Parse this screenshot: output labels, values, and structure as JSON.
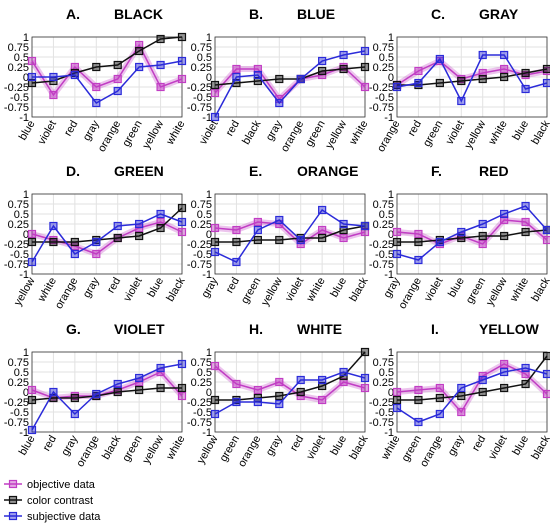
{
  "chart_data": [
    {
      "type": "line",
      "label": "A.",
      "title": "BLACK",
      "categories": [
        "blue",
        "violet",
        "red",
        "gray",
        "orange",
        "green",
        "yellow",
        "white"
      ],
      "ylim": [
        -1,
        1
      ],
      "yticks": [
        -1,
        -0.75,
        -0.5,
        -0.25,
        0,
        0.25,
        0.5,
        0.75,
        1
      ],
      "grid": true,
      "series": [
        {
          "values": [
            0.4,
            -0.45,
            0.25,
            -0.25,
            -0.05,
            0.8,
            -0.25,
            -0.05
          ]
        },
        {
          "values": [
            -0.15,
            -0.1,
            0.1,
            0.25,
            0.3,
            0.65,
            0.95,
            1.0
          ]
        },
        {
          "values": [
            0,
            0,
            0.05,
            -0.65,
            -0.35,
            0.25,
            0.3,
            0.4
          ]
        }
      ]
    },
    {
      "type": "line",
      "label": "B.",
      "title": "BLUE",
      "categories": [
        "violet",
        "red",
        "black",
        "gray",
        "orange",
        "green",
        "yellow",
        "white"
      ],
      "ylim": [
        -1,
        1
      ],
      "yticks": [
        -1,
        -0.75,
        -0.5,
        -0.25,
        0,
        0.25,
        0.5,
        0.75,
        1
      ],
      "grid": true,
      "series": [
        {
          "values": [
            -0.4,
            0.2,
            0.2,
            -0.55,
            -0.05,
            0.05,
            0.25,
            -0.25
          ]
        },
        {
          "values": [
            -0.2,
            -0.15,
            -0.1,
            -0.05,
            -0.05,
            0.15,
            0.2,
            0.25
          ]
        },
        {
          "values": [
            -1.0,
            0,
            0.05,
            -0.65,
            -0.05,
            0.4,
            0.55,
            0.65
          ]
        }
      ]
    },
    {
      "type": "line",
      "label": "C.",
      "title": "GRAY",
      "categories": [
        "orange",
        "red",
        "green",
        "violet",
        "yellow",
        "white",
        "blue",
        "black"
      ],
      "ylim": [
        -1,
        1
      ],
      "yticks": [
        -1,
        -0.75,
        -0.5,
        -0.25,
        0,
        0.25,
        0.5,
        0.75,
        1
      ],
      "grid": true,
      "series": [
        {
          "values": [
            -0.2,
            0.15,
            0.4,
            -0.05,
            0.1,
            0.2,
            0.05,
            0.15
          ]
        },
        {
          "values": [
            -0.2,
            -0.2,
            -0.15,
            -0.1,
            -0.05,
            0,
            0.1,
            0.2
          ]
        },
        {
          "values": [
            -0.25,
            -0.15,
            0.45,
            -0.6,
            0.55,
            0.55,
            -0.3,
            -0.15
          ]
        }
      ]
    },
    {
      "type": "line",
      "label": "D.",
      "title": "GREEN",
      "categories": [
        "yellow",
        "white",
        "orange",
        "gray",
        "red",
        "violet",
        "blue",
        "black"
      ],
      "ylim": [
        -1,
        1
      ],
      "yticks": [
        -1,
        -0.75,
        -0.5,
        -0.25,
        0,
        0.25,
        0.5,
        0.75,
        1
      ],
      "grid": true,
      "series": [
        {
          "values": [
            0,
            -0.15,
            -0.3,
            -0.5,
            -0.1,
            0.15,
            0.3,
            0.05
          ]
        },
        {
          "values": [
            -0.2,
            -0.2,
            -0.2,
            -0.15,
            -0.1,
            -0.05,
            0.15,
            0.65
          ]
        },
        {
          "values": [
            -0.7,
            0.2,
            -0.5,
            -0.2,
            0.2,
            0.25,
            0.5,
            0.3
          ]
        }
      ]
    },
    {
      "type": "line",
      "label": "E.",
      "title": "ORANGE",
      "categories": [
        "gray",
        "red",
        "green",
        "yellow",
        "violet",
        "white",
        "blue",
        "black"
      ],
      "ylim": [
        -1,
        1
      ],
      "yticks": [
        -1,
        -0.75,
        -0.5,
        -0.25,
        0,
        0.25,
        0.5,
        0.75,
        1
      ],
      "grid": true,
      "series": [
        {
          "values": [
            0.15,
            0.1,
            0.3,
            0.25,
            -0.25,
            0.1,
            -0.1,
            0.05
          ]
        },
        {
          "values": [
            -0.2,
            -0.2,
            -0.15,
            -0.15,
            -0.1,
            -0.1,
            0.1,
            0.2
          ]
        },
        {
          "values": [
            -0.45,
            -0.7,
            0.1,
            0.35,
            -0.15,
            0.6,
            0.25,
            0.2
          ]
        }
      ]
    },
    {
      "type": "line",
      "label": "F.",
      "title": "RED",
      "categories": [
        "gray",
        "orange",
        "violet",
        "blue",
        "green",
        "yellow",
        "white",
        "black"
      ],
      "ylim": [
        -1,
        1
      ],
      "yticks": [
        -1,
        -0.75,
        -0.5,
        -0.25,
        0,
        0.25,
        0.5,
        0.75,
        1
      ],
      "grid": true,
      "series": [
        {
          "values": [
            0.05,
            0,
            -0.25,
            -0.05,
            -0.25,
            0.35,
            0.3,
            -0.15
          ]
        },
        {
          "values": [
            -0.2,
            -0.2,
            -0.15,
            -0.1,
            -0.05,
            -0.05,
            0.05,
            0.1
          ]
        },
        {
          "values": [
            -0.5,
            -0.65,
            -0.2,
            0.05,
            0.25,
            0.5,
            0.7,
            0.1
          ]
        }
      ]
    },
    {
      "type": "line",
      "label": "G.",
      "title": "VIOLET",
      "categories": [
        "blue",
        "red",
        "gray",
        "orange",
        "black",
        "green",
        "yellow",
        "white"
      ],
      "ylim": [
        -1,
        1
      ],
      "yticks": [
        -1,
        -0.75,
        -0.5,
        -0.25,
        0,
        0.25,
        0.5,
        0.75,
        1
      ],
      "grid": true,
      "series": [
        {
          "values": [
            0.05,
            -0.15,
            -0.1,
            -0.1,
            0.05,
            0.25,
            0.5,
            -0.1
          ]
        },
        {
          "values": [
            -0.2,
            -0.15,
            -0.15,
            -0.1,
            0,
            0.05,
            0.1,
            0.1
          ]
        },
        {
          "values": [
            -0.95,
            0,
            -0.55,
            -0.05,
            0.2,
            0.35,
            0.6,
            0.7
          ]
        }
      ]
    },
    {
      "type": "line",
      "label": "H.",
      "title": "WHITE",
      "categories": [
        "yellow",
        "green",
        "orange",
        "gray",
        "red",
        "violet",
        "blue",
        "black"
      ],
      "ylim": [
        -1,
        1
      ],
      "yticks": [
        -1,
        -0.75,
        -0.5,
        -0.25,
        0,
        0.25,
        0.5,
        0.75,
        1
      ],
      "grid": true,
      "series": [
        {
          "values": [
            0.65,
            0.2,
            0.05,
            0.25,
            -0.1,
            -0.2,
            0.25,
            0.1
          ]
        },
        {
          "values": [
            -0.2,
            -0.2,
            -0.15,
            -0.1,
            0,
            0.15,
            0.4,
            1.0
          ]
        },
        {
          "values": [
            -0.55,
            -0.25,
            -0.25,
            -0.3,
            0.3,
            0.3,
            0.5,
            0.35
          ]
        }
      ]
    },
    {
      "type": "line",
      "label": "I.",
      "title": "YELLOW",
      "categories": [
        "white",
        "green",
        "orange",
        "gray",
        "red",
        "violet",
        "blue",
        "black"
      ],
      "ylim": [
        -1,
        1
      ],
      "yticks": [
        -1,
        -0.75,
        -0.5,
        -0.25,
        0,
        0.25,
        0.5,
        0.75,
        1
      ],
      "grid": true,
      "series": [
        {
          "values": [
            0,
            0.05,
            0.1,
            -0.5,
            0.4,
            0.7,
            0.45,
            -0.05
          ]
        },
        {
          "values": [
            -0.2,
            -0.2,
            -0.15,
            -0.1,
            0,
            0.1,
            0.2,
            0.9
          ]
        },
        {
          "values": [
            -0.4,
            -0.75,
            -0.55,
            0.1,
            0.3,
            0.5,
            0.6,
            0.45
          ]
        }
      ]
    }
  ],
  "legend": [
    {
      "name": "objective data",
      "color": "#c13dc4"
    },
    {
      "name": "color contrast",
      "color": "#111111"
    },
    {
      "name": "subjective data",
      "color": "#2b2bd9"
    }
  ]
}
